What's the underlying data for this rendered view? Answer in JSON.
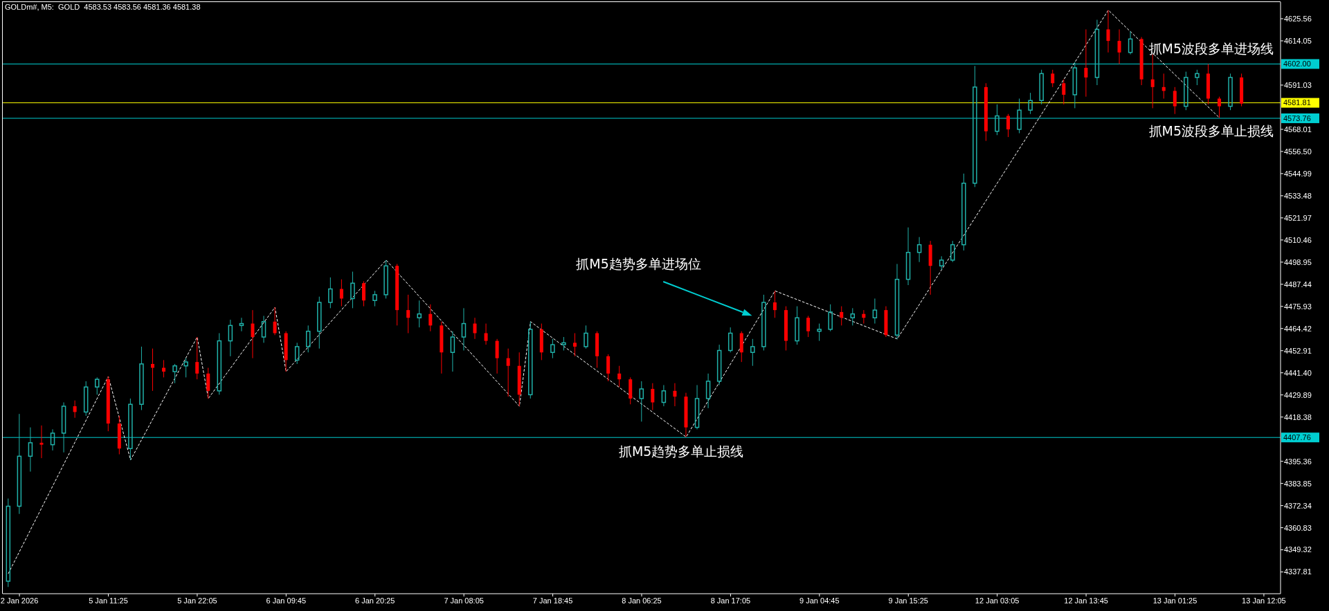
{
  "chart_data": {
    "type": "candlestick",
    "title": "GOLDm#, M5:  GOLD  4583.53 4583.56 4581.36 4581.38",
    "categories": [
      null,
      "2 Jan 2026",
      null,
      null,
      null,
      null,
      null,
      null,
      null,
      "5 Jan 11:25",
      null,
      null,
      null,
      null,
      null,
      null,
      null,
      "5 Jan 22:05",
      null,
      null,
      null,
      null,
      null,
      null,
      null,
      "6 Jan 09:45",
      null,
      null,
      null,
      null,
      null,
      null,
      null,
      "6 Jan 20:25",
      null,
      null,
      null,
      null,
      null,
      null,
      null,
      "7 Jan 08:05",
      null,
      null,
      null,
      null,
      null,
      null,
      null,
      "7 Jan 18:45",
      null,
      null,
      null,
      null,
      null,
      null,
      null,
      "8 Jan 06:25",
      null,
      null,
      null,
      null,
      null,
      null,
      null,
      "8 Jan 17:05",
      null,
      null,
      null,
      null,
      null,
      null,
      null,
      "9 Jan 04:45",
      null,
      null,
      null,
      null,
      null,
      null,
      null,
      "9 Jan 15:25",
      null,
      null,
      null,
      null,
      null,
      null,
      null,
      "12 Jan 03:05",
      null,
      null,
      null,
      null,
      null,
      null,
      null,
      "12 Jan 13:45",
      null,
      null,
      null,
      null,
      null,
      null,
      null,
      "13 Jan 01:25",
      null,
      null,
      null,
      null,
      null,
      null,
      null,
      "13 Jan 12:05",
      null
    ],
    "ylim": [
      4326.5,
      4634.2
    ],
    "yticks": [
      4337.81,
      4349.32,
      4360.83,
      4372.34,
      4383.85,
      4395.36,
      4418.38,
      4429.89,
      {
        "value": 4441.4,
        "label": "4441.40"
      },
      4452.91,
      4464.42,
      4475.93,
      4487.44,
      4498.95,
      4510.46,
      4521.97,
      4533.48,
      4544.99,
      {
        "value": 4556.5,
        "label": "4556.50"
      },
      4568.01,
      4591.03,
      4614.05,
      4625.56
    ],
    "series": [
      {
        "ohlc": [
          [
            4333,
            4376,
            4330,
            4372
          ],
          [
            4372,
            4420,
            4368,
            4398
          ],
          [
            4398,
            4413,
            4390,
            4405
          ],
          [
            4405,
            4414,
            4397,
            4404
          ],
          [
            4404,
            4412,
            4401,
            4410
          ],
          [
            4410,
            4426,
            4400,
            4424
          ],
          [
            4424,
            4427,
            4418,
            4421
          ],
          [
            4421,
            4437,
            4419,
            4434
          ],
          [
            4434,
            4439,
            4430,
            4438
          ],
          [
            4438,
            4439.5,
            4411,
            4415
          ],
          [
            4415,
            4419,
            4399,
            4402
          ],
          [
            4402,
            4428,
            4396,
            4425
          ],
          [
            4425,
            4455,
            4422,
            4446
          ],
          [
            4446,
            4454,
            4432,
            4444
          ],
          [
            4444,
            4448,
            4439,
            4442
          ],
          [
            4442,
            4446,
            4436,
            4445
          ],
          [
            4445,
            4449,
            4439,
            4447
          ],
          [
            4447,
            4460,
            4438,
            4441
          ],
          [
            4441,
            4444,
            4428,
            4432
          ],
          [
            4432,
            4462,
            4430,
            4458
          ],
          [
            4458,
            4469,
            4450,
            4466
          ],
          [
            4466,
            4470,
            4463,
            4467
          ],
          [
            4467,
            4474,
            4449,
            4460
          ],
          [
            4460,
            4471,
            4457,
            4468
          ],
          [
            4468,
            4475.5,
            4461,
            4462
          ],
          [
            4462,
            4463,
            4442,
            4448
          ],
          [
            4448,
            4457,
            4446,
            4455
          ],
          [
            4455,
            4466,
            4452,
            4463
          ],
          [
            4463,
            4481,
            4454,
            4478
          ],
          [
            4478,
            4491,
            4475,
            4485
          ],
          [
            4485,
            4490,
            4476,
            4480
          ],
          [
            4480,
            4494,
            4475,
            4488
          ],
          [
            4488,
            4489,
            4476,
            4479
          ],
          [
            4479,
            4484,
            4476,
            4482
          ],
          [
            4482,
            4500,
            4480,
            4497
          ],
          [
            4497,
            4498,
            4466,
            4474
          ],
          [
            4474,
            4482,
            4462,
            4470
          ],
          [
            4470,
            4479,
            4465,
            4472
          ],
          [
            4472,
            4477,
            4463,
            4466
          ],
          [
            4466,
            4468,
            4441,
            4452
          ],
          [
            4452,
            4463,
            4442,
            4460
          ],
          [
            4460,
            4475,
            4453,
            4467
          ],
          [
            4467,
            4470,
            4459,
            4462
          ],
          [
            4462,
            4467,
            4456,
            4458
          ],
          [
            4458,
            4459,
            4441,
            4449
          ],
          [
            4449,
            4454,
            4429,
            4445
          ],
          [
            4445,
            4452,
            4424,
            4430
          ],
          [
            4430,
            4468,
            4428,
            4464
          ],
          [
            4464,
            4467,
            4448,
            4452
          ],
          [
            4452,
            4459,
            4449,
            4456
          ],
          [
            4456,
            4460,
            4453,
            4457
          ],
          [
            4457,
            4462,
            4450,
            4455
          ],
          [
            4455,
            4466,
            4454,
            4462
          ],
          [
            4462,
            4463,
            4444,
            4450
          ],
          [
            4450,
            4451,
            4437,
            4441
          ],
          [
            4441,
            4445,
            4434,
            4438
          ],
          [
            4438,
            4439,
            4425,
            4428
          ],
          [
            4428,
            4437,
            4416,
            4433
          ],
          [
            4433,
            4436,
            4422,
            4426
          ],
          [
            4426,
            4435,
            4424,
            4432
          ],
          [
            4432,
            4436,
            4424,
            4429
          ],
          [
            4429,
            4431,
            4408,
            4413
          ],
          [
            4413,
            4435,
            4412,
            4428
          ],
          [
            4428,
            4441,
            4423,
            4437
          ],
          [
            4437,
            4456,
            4435,
            4453
          ],
          [
            4453,
            4465,
            4452,
            4462
          ],
          [
            4462,
            4463,
            4447,
            4452
          ],
          [
            4452,
            4459,
            4445,
            4455
          ],
          [
            4455,
            4482,
            4453,
            4478
          ],
          [
            4478,
            4484,
            4470,
            4474
          ],
          [
            4474,
            4476,
            4453,
            4458
          ],
          [
            4458,
            4476,
            4456,
            4470
          ],
          [
            4470,
            4471,
            4460,
            4463
          ],
          [
            4463,
            4467,
            4458,
            4464
          ],
          [
            4464,
            4477,
            4463,
            4473
          ],
          [
            4473,
            4476,
            4466,
            4470
          ],
          [
            4470,
            4475,
            4466,
            4472
          ],
          [
            4472,
            4474,
            4467,
            4470
          ],
          [
            4470,
            4480,
            4467,
            4474
          ],
          [
            4474,
            4476,
            4460,
            4461
          ],
          [
            4461,
            4498,
            4459,
            4490
          ],
          [
            4490,
            4517,
            4487,
            4504
          ],
          [
            4504,
            4512,
            4499,
            4508
          ],
          [
            4508,
            4510,
            4482,
            4497
          ],
          [
            4497,
            4502,
            4495,
            4500
          ],
          [
            4500,
            4510,
            4499,
            4508
          ],
          [
            4508,
            4545,
            4505,
            4540
          ],
          [
            4540,
            4601,
            4538,
            4590
          ],
          [
            4590,
            4592,
            4562,
            4567
          ],
          [
            4567,
            4581,
            4565,
            4575
          ],
          [
            4575,
            4576,
            4564,
            4568
          ],
          [
            4568,
            4584,
            4566,
            4578
          ],
          [
            4578,
            4587,
            4576,
            4583
          ],
          [
            4583,
            4599,
            4581,
            4597
          ],
          [
            4597,
            4599,
            4590,
            4592
          ],
          [
            4592,
            4594,
            4581,
            4586
          ],
          [
            4586,
            4603,
            4579,
            4600
          ],
          [
            4600,
            4620,
            4585,
            4595
          ],
          [
            4595,
            4625,
            4591,
            4620
          ],
          [
            4620,
            4630,
            4608,
            4614
          ],
          [
            4614,
            4620,
            4602,
            4608
          ],
          [
            4608,
            4619,
            4607,
            4615
          ],
          [
            4615,
            4616,
            4591,
            4594
          ],
          [
            4594,
            4607,
            4579,
            4590
          ],
          [
            4590,
            4597,
            4584,
            4588
          ],
          [
            4588,
            4590,
            4576,
            4580
          ],
          [
            4580,
            4598,
            4578,
            4595
          ],
          [
            4595,
            4599,
            4591,
            4597
          ],
          [
            4597,
            4602,
            4581,
            4584
          ],
          [
            4584,
            4585,
            4574,
            4580
          ],
          [
            4580,
            4597,
            4578,
            4595
          ],
          [
            4595,
            4597,
            4580,
            4581.4
          ],
          null,
          null,
          null
        ],
        "colors": [
          "#20b2aa",
          "#20b2aa",
          "#20b2aa",
          "#ff0000",
          "#20b2aa",
          "#20b2aa",
          "#ff0000",
          "#20b2aa",
          "#20b2aa",
          "#ff0000",
          "#ff0000",
          "#20b2aa",
          "#20b2aa",
          "#ff0000",
          "#ff0000",
          "#20b2aa",
          "#20b2aa",
          "#ff0000",
          "#ff0000",
          "#20b2aa",
          "#20b2aa",
          "#20b2aa",
          "#ff0000",
          "#20b2aa",
          "#ff0000",
          "#ff0000",
          "#20b2aa",
          "#20b2aa",
          "#20b2aa",
          "#20b2aa",
          "#ff0000",
          "#20b2aa",
          "#ff0000",
          "#20b2aa",
          "#20b2aa",
          "#ff0000",
          "#ff0000",
          "#20b2aa",
          "#ff0000",
          "#ff0000",
          "#20b2aa",
          "#20b2aa",
          "#ff0000",
          "#ff0000",
          "#ff0000",
          "#ff0000",
          "#ff0000",
          "#20b2aa",
          "#ff0000",
          "#20b2aa",
          "#20b2aa",
          "#ff0000",
          "#20b2aa",
          "#ff0000",
          "#ff0000",
          "#ff0000",
          "#ff0000",
          "#20b2aa",
          "#ff0000",
          "#20b2aa",
          "#ff0000",
          "#ff0000",
          "#20b2aa",
          "#20b2aa",
          "#20b2aa",
          "#20b2aa",
          "#ff0000",
          "#20b2aa",
          "#20b2aa",
          "#ff0000",
          "#ff0000",
          "#20b2aa",
          "#ff0000",
          "#20b2aa",
          "#20b2aa",
          "#ff0000",
          "#20b2aa",
          "#ff0000",
          "#20b2aa",
          "#ff0000",
          "#20b2aa",
          "#20b2aa",
          "#20b2aa",
          "#ff0000",
          "#20b2aa",
          "#20b2aa",
          "#20b2aa",
          "#20b2aa",
          "#ff0000",
          "#20b2aa",
          "#ff0000",
          "#20b2aa",
          "#20b2aa",
          "#20b2aa",
          "#ff0000",
          "#ff0000",
          "#20b2aa",
          "#ff0000",
          "#20b2aa",
          "#ff0000",
          "#ff0000",
          "#20b2aa",
          "#ff0000",
          "#ff0000",
          "#ff0000",
          "#ff0000",
          "#20b2aa",
          "#20b2aa",
          "#ff0000",
          "#ff0000",
          "#20b2aa",
          "#ff0000",
          null,
          null,
          null
        ]
      },
      {
        "type": "line",
        "values": [
          4337,
          null,
          null,
          null,
          null,
          null,
          null,
          null,
          null,
          4439.5,
          null,
          4396,
          null,
          null,
          null,
          null,
          null,
          4460,
          4428,
          null,
          null,
          null,
          null,
          null,
          4475.5,
          4442,
          null,
          null,
          null,
          null,
          null,
          null,
          null,
          null,
          4500,
          null,
          null,
          null,
          null,
          null,
          null,
          null,
          null,
          null,
          null,
          null,
          4424,
          4468,
          null,
          null,
          null,
          null,
          null,
          null,
          null,
          null,
          null,
          null,
          null,
          null,
          null,
          4408,
          null,
          null,
          null,
          null,
          null,
          null,
          null,
          4484,
          null,
          null,
          null,
          null,
          null,
          null,
          null,
          null,
          null,
          null,
          4459,
          null,
          null,
          null,
          null,
          null,
          null,
          null,
          null,
          null,
          null,
          null,
          null,
          null,
          null,
          null,
          null,
          null,
          null,
          4630,
          null,
          null,
          null,
          null,
          null,
          null,
          null,
          null,
          null,
          4574,
          null,
          null,
          null,
          null,
          null
        ],
        "color": "#ffffff",
        "line_style": "dashed"
      }
    ],
    "ref_lines": [
      {
        "axis": "y",
        "value": 4602.0,
        "label": "4602.00",
        "color": "#00ced1"
      },
      {
        "axis": "y",
        "value": 4581.81,
        "label": "4581.81",
        "color": "#ffff00"
      },
      {
        "axis": "y",
        "value": 4573.76,
        "label": "4573.76",
        "color": "#00ced1"
      },
      {
        "axis": "y",
        "value": 4407.76,
        "label": "4407.76",
        "color": "#00ced1"
      }
    ],
    "annotations": [
      {
        "text": "抓M5波段多单进场线",
        "y": 4602.0
      },
      {
        "text": "抓M5波段多单止损线",
        "y": 4573.76
      },
      {
        "text": "抓M5趋势多单止损线",
        "y": 4407.76
      },
      "抓M5趋势多单进场位"
    ]
  }
}
